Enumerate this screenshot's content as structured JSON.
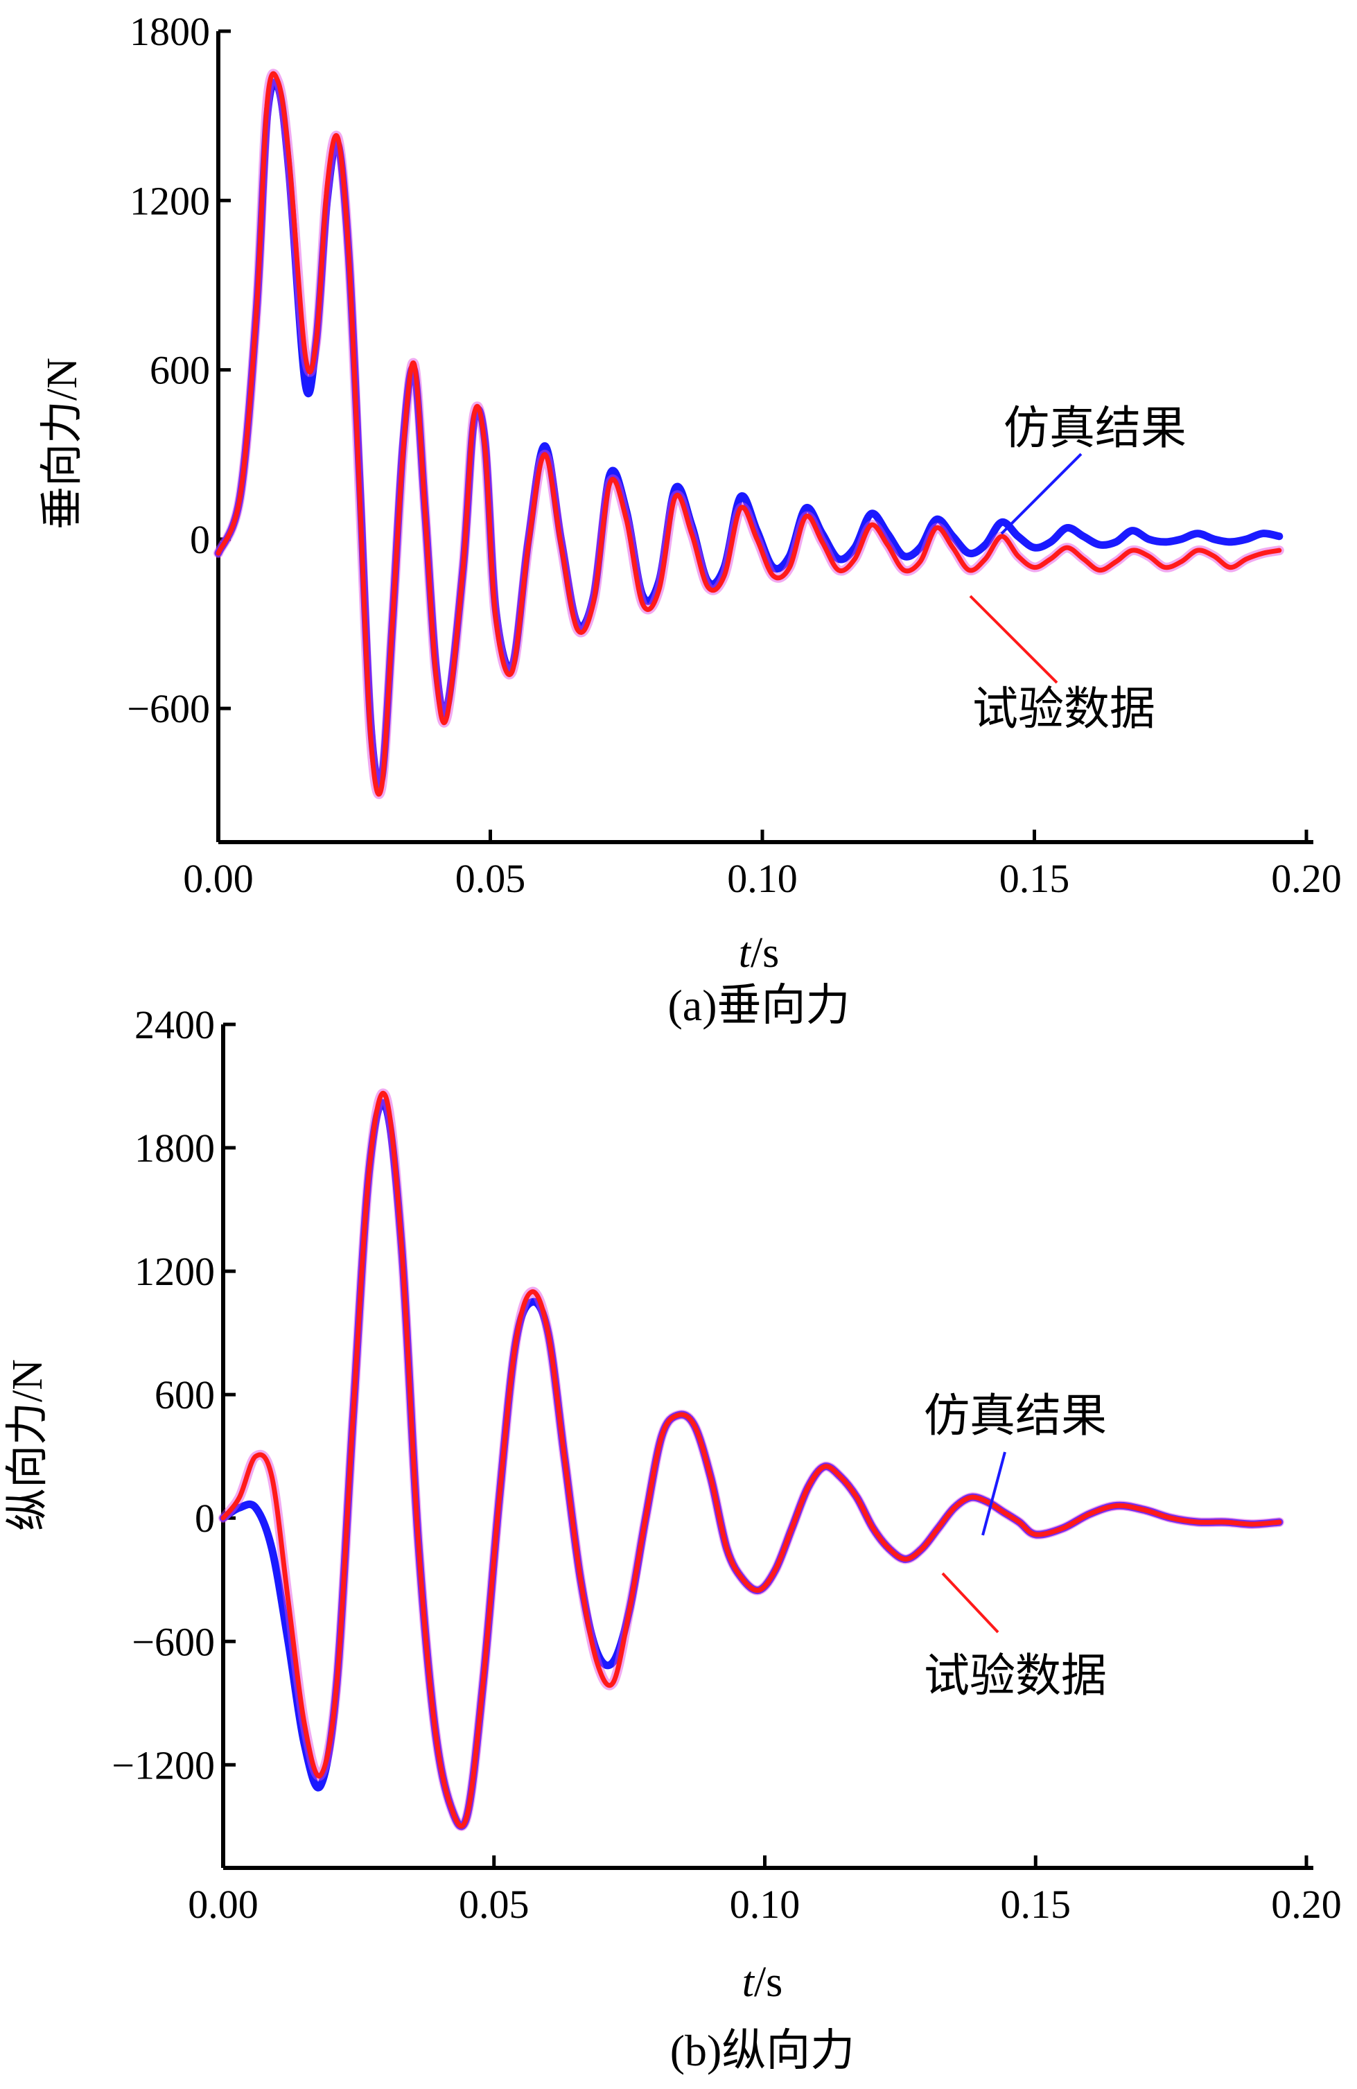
{
  "colors": {
    "simulation": "#1a1aff",
    "experiment": "#ff1a1a",
    "blend": "#e040e0",
    "axis": "#000000"
  },
  "chart_data": [
    {
      "type": "line",
      "caption": "(a)垂向力",
      "xlabel_italic": "t",
      "xlabel_unit": "/s",
      "ylabel": "垂向力/N",
      "xlim": [
        0.0,
        0.2
      ],
      "ylim": [
        -1000,
        1800
      ],
      "xticks": [
        0.0,
        0.05,
        0.1,
        0.15,
        0.2
      ],
      "xtick_labels": [
        "0.00",
        "0.05",
        "0.10",
        "0.15",
        "0.20"
      ],
      "yticks": [
        1800,
        1200,
        600,
        0,
        -600
      ],
      "ytick_labels": [
        "1800",
        "1200",
        "600",
        "0",
        "−600"
      ],
      "grid": false,
      "series": [
        {
          "name": "仿真结果",
          "color": "#1a1aff",
          "x": [
            0.0,
            0.004,
            0.007,
            0.009,
            0.011,
            0.013,
            0.016,
            0.018,
            0.02,
            0.022,
            0.024,
            0.026,
            0.028,
            0.03,
            0.032,
            0.034,
            0.036,
            0.038,
            0.04,
            0.042,
            0.045,
            0.047,
            0.049,
            0.051,
            0.054,
            0.057,
            0.06,
            0.063,
            0.066,
            0.069,
            0.072,
            0.075,
            0.078,
            0.081,
            0.084,
            0.087,
            0.09,
            0.093,
            0.096,
            0.099,
            0.102,
            0.105,
            0.108,
            0.111,
            0.114,
            0.117,
            0.12,
            0.123,
            0.126,
            0.129,
            0.132,
            0.135,
            0.138,
            0.141,
            0.144,
            0.147,
            0.15,
            0.153,
            0.156,
            0.159,
            0.162,
            0.165,
            0.168,
            0.171,
            0.174,
            0.177,
            0.18,
            0.183,
            0.186,
            0.189,
            0.192,
            0.195
          ],
          "y": [
            -50,
            150,
            800,
            1500,
            1600,
            1300,
            550,
            700,
            1200,
            1400,
            1000,
            200,
            -650,
            -850,
            -300,
            350,
            600,
            100,
            -450,
            -600,
            -100,
            420,
            350,
            -250,
            -450,
            0,
            330,
            0,
            -300,
            -200,
            230,
            100,
            -200,
            -150,
            180,
            50,
            -150,
            -100,
            150,
            30,
            -100,
            -60,
            110,
            20,
            -70,
            -30,
            90,
            20,
            -60,
            -30,
            70,
            10,
            -50,
            -20,
            60,
            10,
            -30,
            -10,
            40,
            10,
            -20,
            -10,
            30,
            0,
            -10,
            0,
            20,
            0,
            -10,
            0,
            20,
            10
          ]
        },
        {
          "name": "试验数据",
          "color": "#ff1a1a",
          "x": [
            0.0,
            0.004,
            0.007,
            0.009,
            0.011,
            0.013,
            0.016,
            0.018,
            0.02,
            0.022,
            0.024,
            0.026,
            0.028,
            0.03,
            0.032,
            0.034,
            0.036,
            0.038,
            0.04,
            0.042,
            0.045,
            0.047,
            0.049,
            0.051,
            0.054,
            0.057,
            0.06,
            0.063,
            0.066,
            0.069,
            0.072,
            0.075,
            0.078,
            0.081,
            0.084,
            0.087,
            0.09,
            0.093,
            0.096,
            0.099,
            0.102,
            0.105,
            0.108,
            0.111,
            0.114,
            0.117,
            0.12,
            0.123,
            0.126,
            0.129,
            0.132,
            0.135,
            0.138,
            0.141,
            0.144,
            0.147,
            0.15,
            0.153,
            0.156,
            0.159,
            0.162,
            0.165,
            0.168,
            0.171,
            0.174,
            0.177,
            0.18,
            0.183,
            0.186,
            0.189,
            0.192,
            0.195
          ],
          "y": [
            -50,
            150,
            800,
            1550,
            1620,
            1350,
            650,
            700,
            1250,
            1420,
            1000,
            150,
            -700,
            -880,
            -300,
            320,
            620,
            100,
            -480,
            -630,
            -100,
            440,
            330,
            -280,
            -470,
            -20,
            300,
            -20,
            -320,
            -220,
            200,
            70,
            -230,
            -180,
            150,
            20,
            -170,
            -130,
            110,
            0,
            -130,
            -100,
            80,
            -10,
            -110,
            -70,
            50,
            -20,
            -110,
            -80,
            40,
            -30,
            -110,
            -70,
            10,
            -60,
            -100,
            -70,
            -30,
            -70,
            -110,
            -80,
            -40,
            -60,
            -100,
            -80,
            -40,
            -60,
            -100,
            -70,
            -50,
            -40
          ]
        }
      ],
      "annotations": [
        {
          "text": "仿真结果",
          "series": "仿真结果"
        },
        {
          "text": "试验数据",
          "series": "试验数据"
        }
      ]
    },
    {
      "type": "line",
      "caption": "(b)纵向力",
      "xlabel_italic": "t",
      "xlabel_unit": "/s",
      "ylabel": "纵向力/N",
      "xlim": [
        0.0,
        0.2
      ],
      "ylim": [
        -1600,
        2400
      ],
      "xticks": [
        0.0,
        0.05,
        0.1,
        0.15,
        0.2
      ],
      "xtick_labels": [
        "0.00",
        "0.05",
        "0.10",
        "0.15",
        "0.20"
      ],
      "yticks": [
        2400,
        1800,
        1200,
        600,
        0,
        -600,
        -1200
      ],
      "ytick_labels": [
        "2400",
        "1800",
        "1200",
        "600",
        "0",
        "−600",
        "−1200"
      ],
      "grid": false,
      "series": [
        {
          "name": "仿真结果",
          "color": "#1a1aff",
          "x": [
            0.0,
            0.003,
            0.006,
            0.009,
            0.012,
            0.015,
            0.018,
            0.021,
            0.024,
            0.027,
            0.03,
            0.033,
            0.036,
            0.039,
            0.042,
            0.045,
            0.048,
            0.051,
            0.054,
            0.057,
            0.06,
            0.063,
            0.066,
            0.069,
            0.072,
            0.075,
            0.078,
            0.081,
            0.084,
            0.087,
            0.09,
            0.093,
            0.096,
            0.099,
            0.102,
            0.105,
            0.108,
            0.111,
            0.114,
            0.117,
            0.12,
            0.123,
            0.126,
            0.129,
            0.132,
            0.135,
            0.138,
            0.141,
            0.144,
            0.147,
            0.15,
            0.155,
            0.16,
            0.165,
            0.17,
            0.175,
            0.18,
            0.185,
            0.19,
            0.195
          ],
          "y": [
            0,
            50,
            50,
            -150,
            -600,
            -1100,
            -1300,
            -800,
            500,
            1700,
            2000,
            1300,
            -100,
            -1000,
            -1400,
            -1450,
            -800,
            100,
            850,
            1050,
            900,
            300,
            -300,
            -650,
            -700,
            -450,
            0,
            400,
            500,
            450,
            200,
            -150,
            -300,
            -350,
            -250,
            -50,
            150,
            250,
            200,
            100,
            -50,
            -150,
            -200,
            -150,
            -50,
            50,
            100,
            80,
            30,
            -20,
            -80,
            -50,
            20,
            60,
            40,
            0,
            -20,
            -20,
            -30,
            -20
          ]
        },
        {
          "name": "试验数据",
          "color": "#ff1a1a",
          "x": [
            0.0,
            0.003,
            0.006,
            0.009,
            0.012,
            0.015,
            0.018,
            0.021,
            0.024,
            0.027,
            0.03,
            0.033,
            0.036,
            0.039,
            0.042,
            0.045,
            0.048,
            0.051,
            0.054,
            0.057,
            0.06,
            0.063,
            0.066,
            0.069,
            0.072,
            0.075,
            0.078,
            0.081,
            0.084,
            0.087,
            0.09,
            0.093,
            0.096,
            0.099,
            0.102,
            0.105,
            0.108,
            0.111,
            0.114,
            0.117,
            0.12,
            0.123,
            0.126,
            0.129,
            0.132,
            0.135,
            0.138,
            0.141,
            0.144,
            0.147,
            0.15,
            0.155,
            0.16,
            0.165,
            0.17,
            0.175,
            0.18,
            0.185,
            0.19,
            0.195
          ],
          "y": [
            0,
            100,
            300,
            200,
            -400,
            -1000,
            -1250,
            -800,
            500,
            1700,
            2050,
            1300,
            -100,
            -1000,
            -1400,
            -1450,
            -800,
            100,
            850,
            1100,
            900,
            300,
            -300,
            -700,
            -800,
            -450,
            0,
            400,
            500,
            450,
            200,
            -150,
            -300,
            -350,
            -250,
            -50,
            150,
            250,
            200,
            100,
            -50,
            -150,
            -200,
            -150,
            -50,
            50,
            100,
            80,
            30,
            -20,
            -80,
            -50,
            20,
            60,
            40,
            0,
            -20,
            -20,
            -30,
            -20
          ]
        }
      ],
      "annotations": [
        {
          "text": "仿真结果",
          "series": "仿真结果"
        },
        {
          "text": "试验数据",
          "series": "试验数据"
        }
      ]
    }
  ]
}
